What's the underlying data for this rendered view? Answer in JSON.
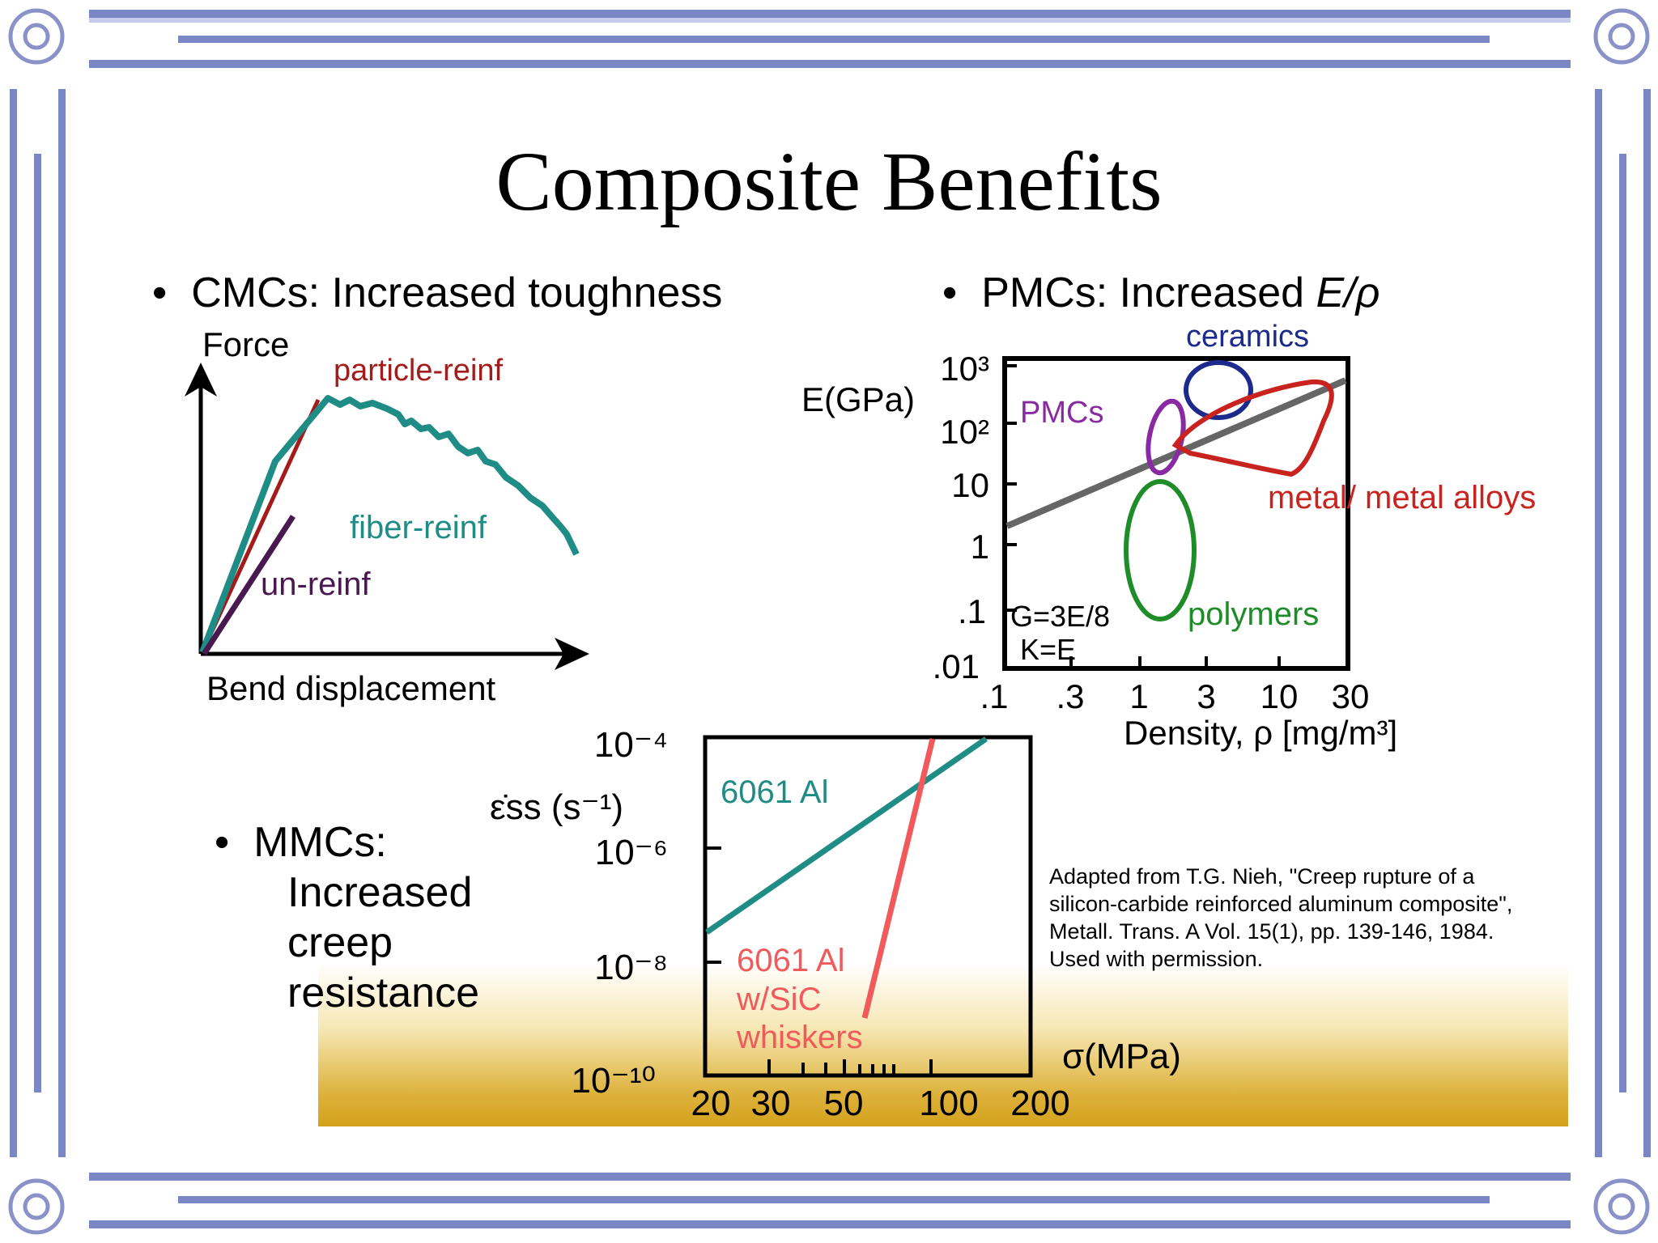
{
  "slide": {
    "title": "Composite Benefits",
    "bullets": {
      "cmc": "CMCs:  Increased toughness",
      "pmc_prefix": "PMCs:  Increased ",
      "pmc_symbol": "E/ρ",
      "mmc_lines": [
        "MMCs:",
        "Increased",
        "creep",
        "resistance"
      ],
      "dot": "•"
    },
    "credit_lines": [
      "Adapted from T.G. Nieh, \"Creep rupture of a",
      "silicon-carbide reinforced aluminum composite\",",
      "Metall. Trans. A Vol. 15(1), pp. 139-146, 1984.",
      "Used with permission."
    ]
  },
  "chart_data": [
    {
      "type": "line",
      "xlabel": "Bend displacement",
      "ylabel": "Force",
      "series": [
        {
          "name": "particle-reinf",
          "color": "#a31b1b"
        },
        {
          "name": "fiber-reinf",
          "color": "#1f8c86"
        },
        {
          "name": "un-reinf",
          "color": "#4a1850"
        }
      ]
    },
    {
      "type": "scatter",
      "xlabel": "Density, ρ [mg/m³]",
      "ylabel": "E(GPa)",
      "x_ticks": [
        ".1",
        ".3",
        "1",
        "3",
        "10",
        "30"
      ],
      "y_ticks": [
        ".01",
        ".1",
        "1",
        "10",
        "10²",
        "10³"
      ],
      "xlim": [
        0.1,
        30
      ],
      "ylim": [
        0.01,
        1000
      ],
      "scale": "log-log",
      "regions": [
        {
          "name": "ceramics",
          "color": "#1c2a8c"
        },
        {
          "name": "PMCs",
          "color": "#8a2aa3"
        },
        {
          "name": "metal/ metal alloys",
          "color": "#c8231e"
        },
        {
          "name": "polymers",
          "color": "#1e8c28"
        }
      ],
      "annotations": [
        "G=3E/8",
        "K=E"
      ]
    },
    {
      "type": "line",
      "xlabel": "σ(MPa)",
      "ylabel": "ε̇ss (s⁻¹)",
      "x_ticks": [
        "20",
        "30",
        "50",
        "100",
        "200"
      ],
      "y_ticks": [
        "10⁻¹⁰",
        "10⁻⁸",
        "10⁻⁶",
        "10⁻⁴"
      ],
      "xlim": [
        20,
        200
      ],
      "ylim": [
        1e-10,
        0.0001
      ],
      "scale": "log-log",
      "series": [
        {
          "name": "6061 Al",
          "color": "#1f8c86",
          "points": [
            [
              20,
              4e-08
            ],
            [
              150,
              0.0001
            ]
          ]
        },
        {
          "name": "6061 Al w/SiC whiskers",
          "color": "#f05a5a",
          "points": [
            [
              58,
              1e-09
            ],
            [
              95,
              0.0001
            ]
          ]
        }
      ]
    }
  ]
}
